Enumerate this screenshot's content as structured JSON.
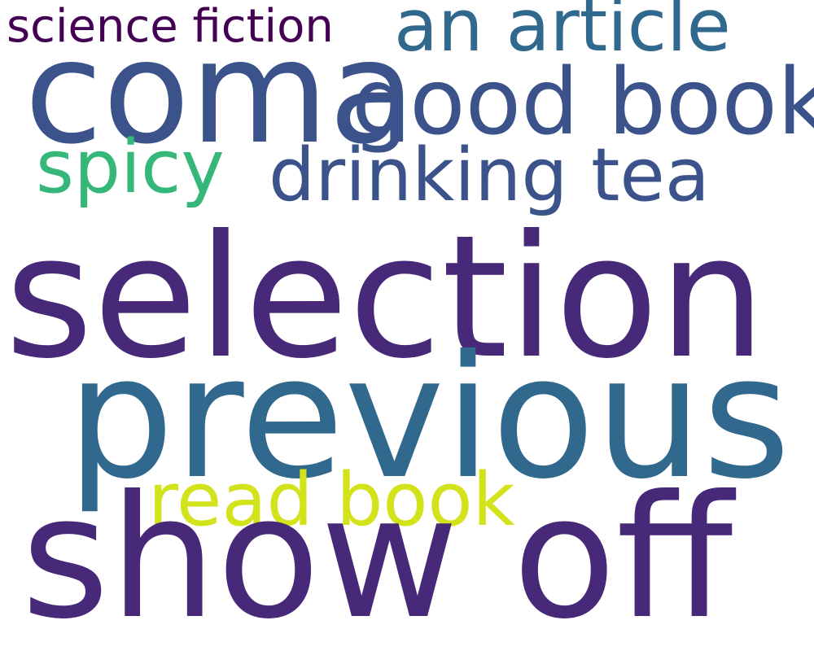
{
  "words": [
    {
      "text": "science fiction",
      "color": "#440154"
    },
    {
      "text": "an article",
      "color": "#31688e"
    },
    {
      "text": "coma",
      "color": "#3b528b"
    },
    {
      "text": "good book",
      "color": "#3b528b"
    },
    {
      "text": "spicy",
      "color": "#35b779"
    },
    {
      "text": "drinking tea",
      "color": "#3b528b"
    },
    {
      "text": "selection",
      "color": "#482878"
    },
    {
      "text": "previous",
      "color": "#31688e"
    },
    {
      "text": "read book",
      "color": "#d2e21b"
    },
    {
      "text": "show off",
      "color": "#482878"
    }
  ]
}
